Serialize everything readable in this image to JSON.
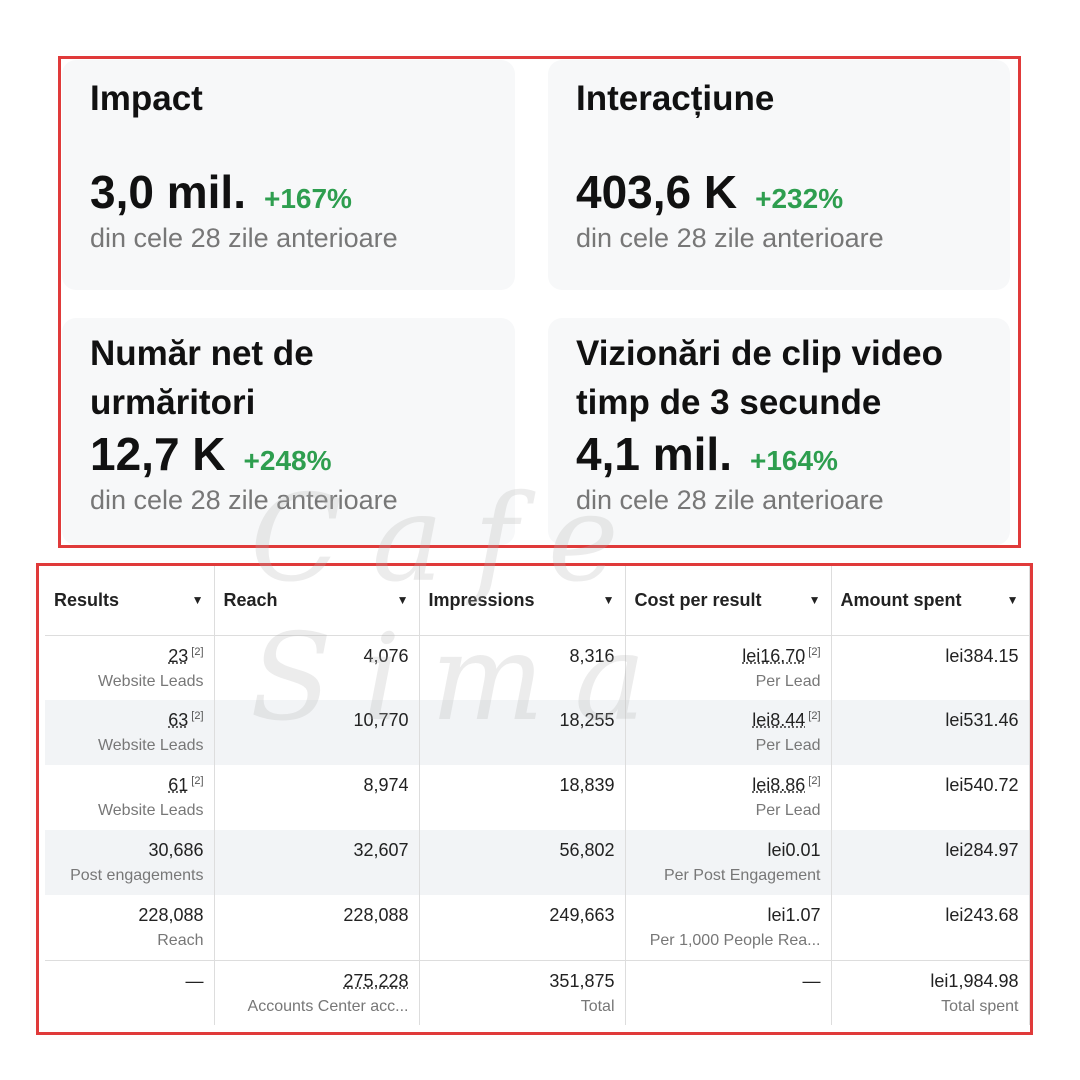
{
  "cards": [
    {
      "title": "Impact",
      "value": "3,0 mil.",
      "change": "+167%",
      "period": "din cele 28 zile anterioare"
    },
    {
      "title": "Interacțiune",
      "value": "403,6 K",
      "change": "+232%",
      "period": "din cele 28 zile anterioare"
    },
    {
      "title": "Număr net de urmăritori",
      "value": "12,7 K",
      "change": "+248%",
      "period": "din cele 28 zile anterioare"
    },
    {
      "title": "Vizionări de clip video timp de 3 secunde",
      "value": "4,1 mil.",
      "change": "+164%",
      "period": "din cele 28 zile anterioare"
    }
  ],
  "table": {
    "headers": [
      "Results",
      "Reach",
      "Impressions",
      "Cost per result",
      "Amount spent"
    ],
    "rows": [
      {
        "results": "23",
        "results_note": "[2]",
        "results_sub": "Website Leads",
        "reach": "4,076",
        "impressions": "8,316",
        "cost": "lei16.70",
        "cost_note": "[2]",
        "cost_sub": "Per Lead",
        "spent": "lei384.15"
      },
      {
        "results": "63",
        "results_note": "[2]",
        "results_sub": "Website Leads",
        "reach": "10,770",
        "impressions": "18,255",
        "cost": "lei8.44",
        "cost_note": "[2]",
        "cost_sub": "Per Lead",
        "spent": "lei531.46"
      },
      {
        "results": "61",
        "results_note": "[2]",
        "results_sub": "Website Leads",
        "reach": "8,974",
        "impressions": "18,839",
        "cost": "lei8.86",
        "cost_note": "[2]",
        "cost_sub": "Per Lead",
        "spent": "lei540.72"
      },
      {
        "results": "30,686",
        "results_sub": "Post engagements",
        "reach": "32,607",
        "impressions": "56,802",
        "cost": "lei0.01",
        "cost_sub": "Per Post Engagement",
        "spent": "lei284.97"
      },
      {
        "results": "228,088",
        "results_sub": "Reach",
        "reach": "228,088",
        "impressions": "249,663",
        "cost": "lei1.07",
        "cost_sub": "Per 1,000 People Rea...",
        "spent": "lei243.68"
      }
    ],
    "total": {
      "results": "—",
      "reach": "275,228",
      "reach_sub": "Accounts Center acc...",
      "impressions": "351,875",
      "impressions_sub": "Total",
      "cost": "—",
      "spent": "lei1,984.98",
      "spent_sub": "Total spent"
    }
  },
  "watermark": "Cafe Sima"
}
